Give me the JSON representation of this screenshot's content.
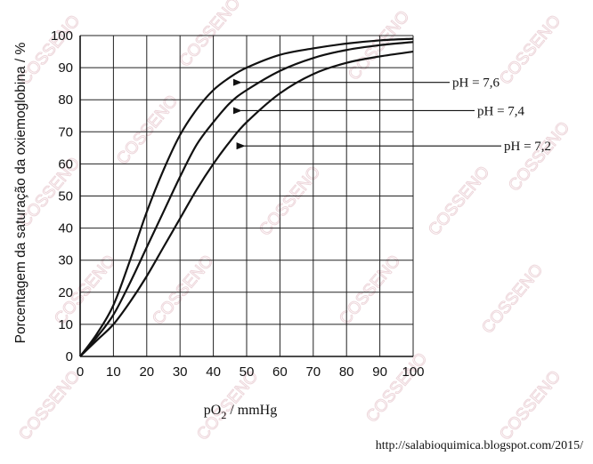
{
  "chart_data": {
    "type": "line",
    "title": "",
    "xlabel_main": "pO",
    "xlabel_sub": "2",
    "xlabel_unit": " / mmHg",
    "ylabel": "Porcentagem da saturação da oxiemoglobina / %",
    "xlim": [
      0,
      100
    ],
    "ylim": [
      0,
      100
    ],
    "x_ticks": [
      "0",
      "10",
      "20",
      "30",
      "40",
      "50",
      "60",
      "70",
      "80",
      "90",
      "100"
    ],
    "y_ticks": [
      "0",
      "10",
      "20",
      "30",
      "40",
      "50",
      "60",
      "70",
      "80",
      "90",
      "100"
    ],
    "grid": true,
    "series": [
      {
        "name": "pH = 7,6",
        "x": [
          0,
          5,
          10,
          15,
          20,
          25,
          30,
          35,
          40,
          45,
          50,
          60,
          70,
          80,
          90,
          100
        ],
        "values": [
          0,
          7,
          16,
          30,
          45,
          58,
          69,
          77,
          83,
          87,
          90,
          94,
          96,
          97.5,
          98.5,
          99
        ]
      },
      {
        "name": "pH = 7,4",
        "x": [
          0,
          5,
          10,
          15,
          20,
          25,
          30,
          35,
          40,
          45,
          50,
          60,
          70,
          80,
          90,
          100
        ],
        "values": [
          0,
          6,
          13,
          23,
          34,
          45,
          56,
          66,
          73,
          79,
          83,
          89,
          93,
          95.5,
          97,
          98
        ]
      },
      {
        "name": "pH = 7,2",
        "x": [
          0,
          5,
          10,
          15,
          20,
          25,
          30,
          35,
          40,
          45,
          50,
          60,
          70,
          80,
          90,
          100
        ],
        "values": [
          0,
          5,
          10,
          17,
          25,
          34,
          43,
          52,
          60,
          67,
          73,
          82,
          88,
          91.5,
          93.5,
          95
        ]
      }
    ],
    "annotations": [
      {
        "text": "pH = 7,6",
        "series": 0,
        "arrow_x": 43
      },
      {
        "text": "pH = 7,4",
        "series": 1,
        "arrow_x": 43
      },
      {
        "text": "pH = 7,2",
        "series": 2,
        "arrow_x": 44
      }
    ]
  },
  "credit": "http://salabioquimica.blogspot.com/2015/",
  "watermark_text": "COSSENO"
}
